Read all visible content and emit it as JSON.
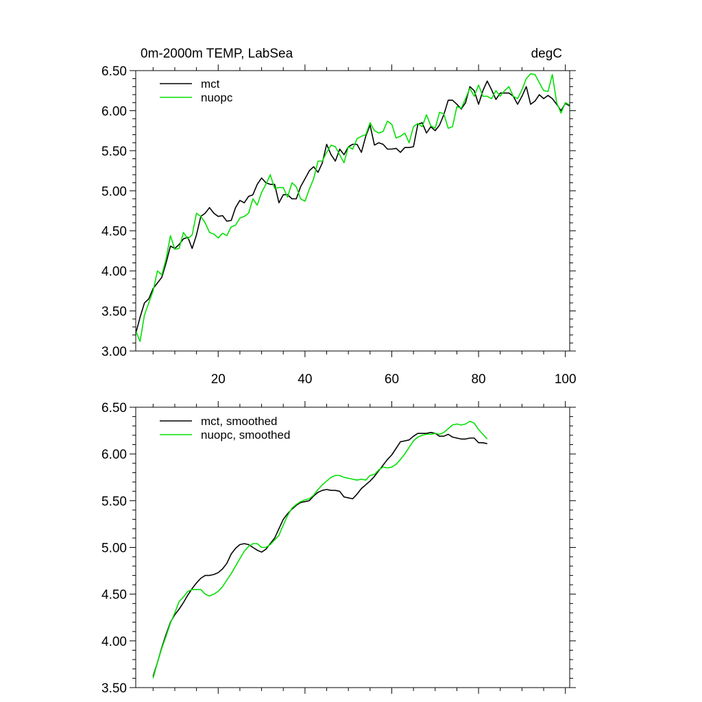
{
  "colors": {
    "mct": "#000000",
    "nuopc": "#00e000",
    "axis": "#000000",
    "background": "#ffffff"
  },
  "chart_data": [
    {
      "type": "line",
      "title_left": "0m-2000m TEMP, LabSea",
      "title_right": "degC",
      "xlabel": "",
      "ylabel": "",
      "xlim": [
        1,
        101
      ],
      "ylim": [
        3.0,
        6.5
      ],
      "xticks": [
        20,
        40,
        60,
        80,
        100
      ],
      "xtick_labels": [
        "20",
        "40",
        "60",
        "80",
        "100"
      ],
      "yticks": [
        3.0,
        3.5,
        4.0,
        4.5,
        5.0,
        5.5,
        6.0,
        6.5
      ],
      "ytick_labels": [
        "3.00",
        "3.50",
        "4.00",
        "4.50",
        "5.00",
        "5.50",
        "6.00",
        "6.50"
      ],
      "grid": false,
      "legend_position": "top-left",
      "x_start": 1,
      "series": [
        {
          "name": "mct",
          "color": "#000000",
          "values": [
            3.22,
            3.42,
            3.6,
            3.65,
            3.78,
            3.85,
            3.92,
            4.1,
            4.31,
            4.28,
            4.33,
            4.4,
            4.42,
            4.28,
            4.45,
            4.68,
            4.72,
            4.79,
            4.72,
            4.68,
            4.69,
            4.62,
            4.63,
            4.79,
            4.88,
            4.85,
            4.93,
            4.95,
            5.08,
            5.16,
            5.1,
            5.08,
            5.08,
            4.85,
            4.95,
            4.95,
            4.9,
            4.9,
            5.05,
            5.15,
            5.25,
            5.3,
            5.23,
            5.35,
            5.58,
            5.45,
            5.37,
            5.52,
            5.45,
            5.55,
            5.58,
            5.58,
            5.48,
            5.68,
            5.82,
            5.57,
            5.6,
            5.58,
            5.52,
            5.52,
            5.53,
            5.48,
            5.54,
            5.54,
            5.55,
            5.83,
            5.85,
            5.72,
            5.8,
            5.75,
            5.82,
            5.95,
            6.13,
            6.13,
            6.08,
            6.02,
            6.1,
            6.3,
            6.25,
            6.08,
            6.25,
            6.37,
            6.26,
            6.14,
            6.22,
            6.22,
            6.22,
            6.18,
            6.08,
            6.18,
            6.3,
            6.08,
            6.12,
            6.2,
            6.15,
            6.19,
            6.15,
            6.08,
            6.0,
            6.09,
            6.06
          ]
        },
        {
          "name": "nuopc",
          "color": "#00e000",
          "values": [
            3.25,
            3.12,
            3.45,
            3.6,
            3.75,
            4.0,
            3.95,
            4.15,
            4.44,
            4.27,
            4.28,
            4.48,
            4.4,
            4.45,
            4.72,
            4.68,
            4.6,
            4.48,
            4.46,
            4.41,
            4.47,
            4.44,
            4.55,
            4.57,
            4.66,
            4.68,
            4.72,
            4.9,
            4.82,
            4.98,
            5.08,
            5.2,
            5.03,
            5.04,
            5.04,
            4.92,
            5.1,
            5.05,
            4.9,
            4.87,
            5.02,
            5.15,
            5.37,
            5.37,
            5.48,
            5.57,
            5.55,
            5.45,
            5.35,
            5.55,
            5.52,
            5.65,
            5.68,
            5.7,
            5.85,
            5.75,
            5.72,
            5.74,
            5.87,
            5.83,
            5.66,
            5.68,
            5.72,
            5.6,
            5.8,
            5.84,
            5.8,
            5.95,
            5.81,
            5.78,
            5.98,
            5.96,
            5.78,
            5.8,
            6.05,
            6.03,
            6.15,
            6.28,
            6.18,
            6.32,
            6.18,
            6.18,
            6.15,
            6.25,
            6.18,
            6.25,
            6.3,
            6.18,
            6.15,
            6.26,
            6.4,
            6.46,
            6.45,
            6.35,
            6.25,
            6.24,
            6.45,
            6.1,
            5.97,
            6.1,
            6.07
          ]
        }
      ]
    },
    {
      "type": "line",
      "title_left": "",
      "title_right": "",
      "xlabel": "",
      "ylabel": "",
      "xlim": [
        1,
        101
      ],
      "ylim": [
        3.5,
        6.5
      ],
      "xticks": [
        20,
        40,
        60,
        80,
        100
      ],
      "xtick_labels": [],
      "yticks": [
        3.5,
        4.0,
        4.5,
        5.0,
        5.5,
        6.0,
        6.5
      ],
      "ytick_labels": [
        "3.50",
        "4.00",
        "4.50",
        "5.00",
        "5.50",
        "6.00",
        "6.50"
      ],
      "grid": false,
      "legend_position": "top-left",
      "x_start": 5,
      "series": [
        {
          "name": "mct, smoothed",
          "color": "#000000",
          "values": [
            3.62,
            3.77,
            3.93,
            4.07,
            4.2,
            4.28,
            4.34,
            4.41,
            4.49,
            4.56,
            4.62,
            4.67,
            4.7,
            4.7,
            4.71,
            4.73,
            4.77,
            4.83,
            4.93,
            4.99,
            5.03,
            5.04,
            5.03,
            5.0,
            4.97,
            4.95,
            4.98,
            5.04,
            5.1,
            5.2,
            5.3,
            5.36,
            5.41,
            5.45,
            5.48,
            5.49,
            5.5,
            5.55,
            5.59,
            5.61,
            5.62,
            5.61,
            5.61,
            5.6,
            5.54,
            5.53,
            5.52,
            5.57,
            5.63,
            5.67,
            5.71,
            5.76,
            5.82,
            5.88,
            5.94,
            5.99,
            6.06,
            6.13,
            6.14,
            6.15,
            6.19,
            6.22,
            6.22,
            6.22,
            6.23,
            6.22,
            6.19,
            6.19,
            6.21,
            6.18,
            6.17,
            6.16,
            6.16,
            6.17,
            6.17,
            6.12,
            6.12,
            6.11
          ]
        },
        {
          "name": "nuopc, smoothed",
          "color": "#00e000",
          "values": [
            3.6,
            3.77,
            3.92,
            4.05,
            4.19,
            4.3,
            4.42,
            4.47,
            4.53,
            4.55,
            4.55,
            4.55,
            4.5,
            4.48,
            4.5,
            4.53,
            4.58,
            4.65,
            4.72,
            4.8,
            4.88,
            4.96,
            5.01,
            5.04,
            5.04,
            5.0,
            5.0,
            5.03,
            5.08,
            5.13,
            5.24,
            5.34,
            5.42,
            5.46,
            5.49,
            5.51,
            5.52,
            5.56,
            5.62,
            5.67,
            5.71,
            5.75,
            5.77,
            5.77,
            5.75,
            5.74,
            5.73,
            5.72,
            5.73,
            5.72,
            5.77,
            5.78,
            5.83,
            5.86,
            5.85,
            5.86,
            5.89,
            5.94,
            6.0,
            6.07,
            6.14,
            6.18,
            6.2,
            6.21,
            6.21,
            6.22,
            6.21,
            6.23,
            6.27,
            6.31,
            6.32,
            6.31,
            6.32,
            6.35,
            6.33,
            6.26,
            6.21,
            6.16
          ]
        }
      ]
    }
  ]
}
